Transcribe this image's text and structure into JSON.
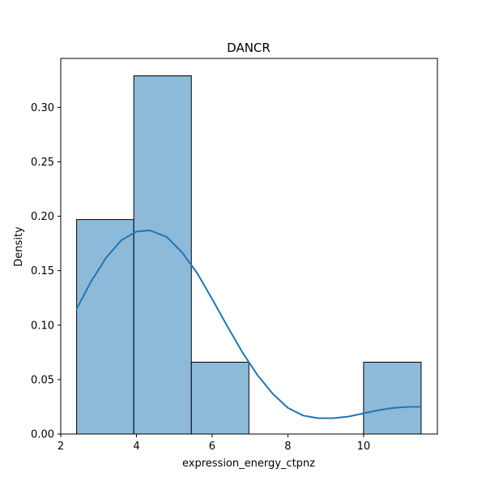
{
  "chart_data": {
    "type": "bar",
    "title": "DANCR",
    "xlabel": "expression_energy_ctpnz",
    "ylabel": "Density",
    "xlim": [
      2.0,
      11.95
    ],
    "ylim": [
      0.0,
      0.345
    ],
    "x_ticks": [
      2,
      4,
      6,
      8,
      10
    ],
    "y_ticks": [
      0.0,
      0.05,
      0.1,
      0.15,
      0.2,
      0.25,
      0.3
    ],
    "x_tick_labels": [
      "2",
      "4",
      "6",
      "8",
      "10"
    ],
    "y_tick_labels": [
      "0.00",
      "0.05",
      "0.10",
      "0.15",
      "0.20",
      "0.25",
      "0.30"
    ],
    "bins": [
      {
        "x0": 2.42,
        "x1": 3.93,
        "density": 0.197
      },
      {
        "x0": 3.93,
        "x1": 5.45,
        "density": 0.329
      },
      {
        "x0": 5.45,
        "x1": 6.97,
        "density": 0.066
      },
      {
        "x0": 6.97,
        "x1": 8.48,
        "density": 0.0
      },
      {
        "x0": 8.48,
        "x1": 10.0,
        "density": 0.0
      },
      {
        "x0": 10.0,
        "x1": 11.52,
        "density": 0.066
      }
    ],
    "kde": {
      "x": [
        2.42,
        2.8,
        3.2,
        3.6,
        4.0,
        4.36,
        4.8,
        5.2,
        5.6,
        6.0,
        6.4,
        6.8,
        7.2,
        7.6,
        8.0,
        8.4,
        8.8,
        9.2,
        9.6,
        10.0,
        10.4,
        10.8,
        11.2,
        11.52
      ],
      "y": [
        0.115,
        0.14,
        0.162,
        0.178,
        0.186,
        0.187,
        0.181,
        0.167,
        0.148,
        0.124,
        0.099,
        0.075,
        0.054,
        0.037,
        0.024,
        0.017,
        0.0145,
        0.0145,
        0.016,
        0.019,
        0.022,
        0.024,
        0.025,
        0.025
      ]
    },
    "grid": false,
    "legend": "none",
    "colors": {
      "bar_fill": "#8dbad9",
      "bar_edge": "#000000",
      "kde_line": "#1f77b4"
    }
  }
}
